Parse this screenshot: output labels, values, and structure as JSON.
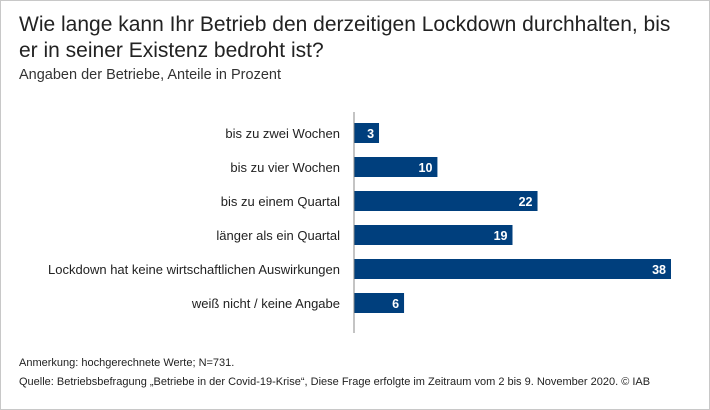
{
  "title": "Wie lange kann Ihr Betrieb den derzeitigen Lockdown durchhalten, bis er in seiner Existenz bedroht ist?",
  "subtitle": "Angaben der Betriebe, Anteile in Prozent",
  "notes": {
    "remark": "Anmerkung: hochgerechnete Werte; N=731.",
    "source": "Quelle: Betriebsbefragung „Betriebe in der Covid-19-Krise“, Diese Frage erfolgte im Zeitraum vom 2 bis 9. November 2020. © IAB"
  },
  "colors": {
    "bar": "#003f7d",
    "bar_label": "#ffffff",
    "axis": "#888888"
  },
  "chart_data": {
    "type": "bar",
    "orientation": "horizontal",
    "categories": [
      "bis zu zwei Wochen",
      "bis zu vier Wochen",
      "bis zu einem Quartal",
      "länger als ein Quartal",
      "Lockdown hat keine wirtschaftlichen Auswirkungen",
      "weiß nicht / keine Angabe"
    ],
    "values": [
      3,
      10,
      22,
      19,
      38,
      6
    ],
    "xlim": [
      0,
      38
    ],
    "grid": false,
    "legend": "none",
    "data_labels": true
  }
}
